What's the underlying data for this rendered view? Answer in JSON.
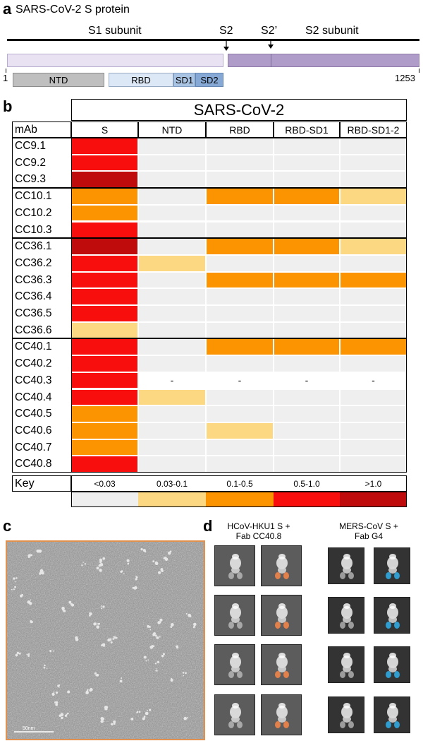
{
  "panel_a": {
    "letter": "a",
    "title": "SARS-CoV-2 S protein",
    "s1_label": "S1 subunit",
    "s2_site": "S2",
    "s2prime_site": "S2’",
    "s2_label": "S2 subunit",
    "start": "1",
    "end": "1253",
    "domains": [
      "NTD",
      "RBD",
      "SD1",
      "SD2"
    ]
  },
  "panel_b": {
    "letter": "b",
    "header": "SARS-CoV-2",
    "mab_label": "mAb",
    "columns": [
      "S",
      "NTD",
      "RBD",
      "RBD-SD1",
      "RBD-SD1-2"
    ],
    "groups": [
      {
        "rows": [
          "CC9.1",
          "CC9.2",
          "CC9.3"
        ]
      },
      {
        "rows": [
          "CC10.1",
          "CC10.2",
          "CC10.3"
        ]
      },
      {
        "rows": [
          "CC36.1",
          "CC36.2",
          "CC36.3",
          "CC36.4",
          "CC36.5",
          "CC36.6"
        ]
      },
      {
        "rows": [
          "CC40.1",
          "CC40.2",
          "CC40.3",
          "CC40.4",
          "CC40.5",
          "CC40.6",
          "CC40.7",
          "CC40.8"
        ]
      }
    ],
    "values": [
      [
        3,
        0,
        0,
        0,
        0
      ],
      [
        3,
        0,
        0,
        0,
        0
      ],
      [
        4,
        0,
        0,
        0,
        0
      ],
      [
        2,
        0,
        2,
        2,
        1
      ],
      [
        2,
        0,
        0,
        0,
        0
      ],
      [
        3,
        0,
        0,
        0,
        0
      ],
      [
        4,
        0,
        2,
        2,
        1
      ],
      [
        3,
        1,
        0,
        0,
        0
      ],
      [
        3,
        0,
        2,
        2,
        2
      ],
      [
        3,
        0,
        0,
        0,
        0
      ],
      [
        3,
        0,
        0,
        0,
        0
      ],
      [
        1,
        0,
        0,
        0,
        0
      ],
      [
        3,
        0,
        2,
        2,
        2
      ],
      [
        3,
        0,
        0,
        0,
        0
      ],
      [
        3,
        -1,
        -1,
        -1,
        -1
      ],
      [
        3,
        1,
        0,
        0,
        0
      ],
      [
        2,
        0,
        0,
        0,
        0
      ],
      [
        2,
        0,
        1,
        0,
        0
      ],
      [
        2,
        0,
        0,
        0,
        0
      ],
      [
        3,
        0,
        0,
        0,
        0
      ]
    ],
    "missing_symbol": "-",
    "key_label": "Key",
    "key_ranges": [
      "<0.03",
      "0.03-0.1",
      "0.1-0.5",
      "0.5-1.0",
      ">1.0"
    ],
    "colors": [
      "#efefef",
      "#fdd882",
      "#fb9400",
      "#f90e0e",
      "#bf0b0b"
    ]
  },
  "panel_c": {
    "letter": "c",
    "scale_label": "50nm"
  },
  "panel_d": {
    "letter": "d",
    "left_title": "HCoV-HKU1 S +\nFab CC40.8",
    "right_title": "MERS-CoV S +\nFab G4",
    "left_fab_color": "#e8824a",
    "right_fab_color": "#2fa3d8"
  }
}
